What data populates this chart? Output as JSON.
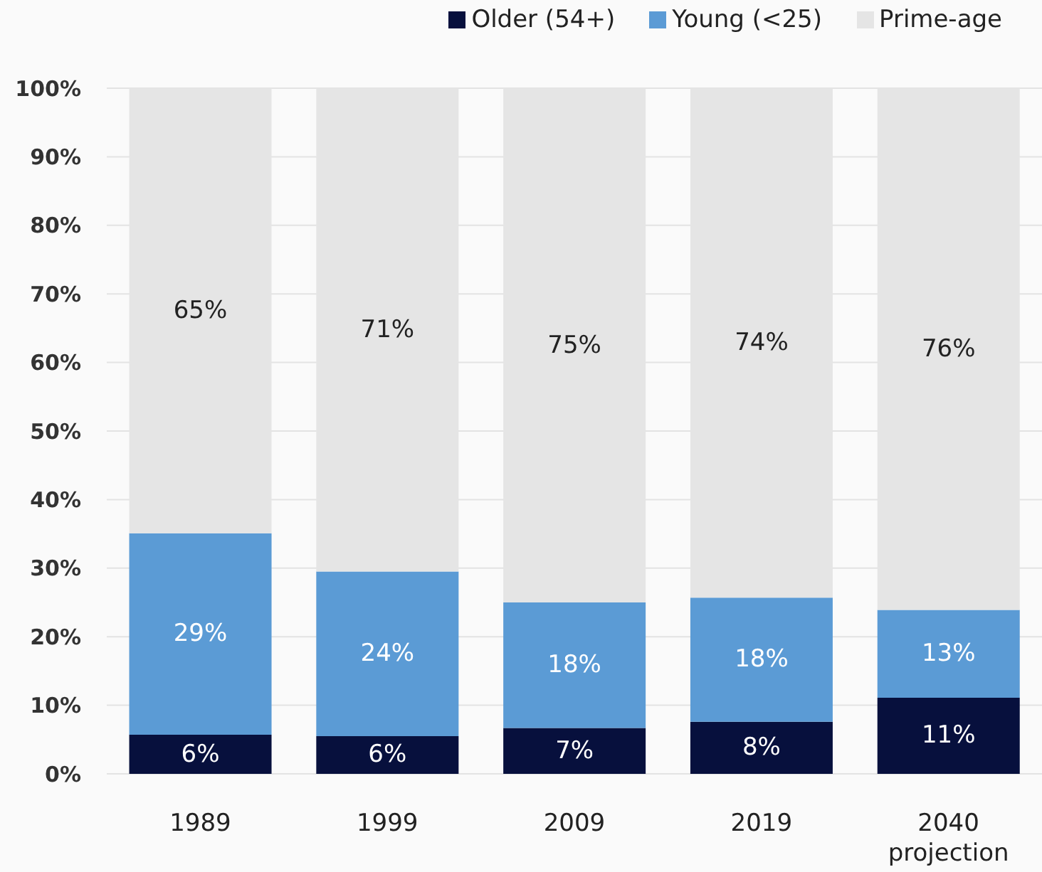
{
  "chart_data": {
    "type": "bar",
    "stacked": true,
    "categories": [
      "1989",
      "1999",
      "2009",
      "2019",
      "2040 projection"
    ],
    "series": [
      {
        "name": "Older (54+)",
        "color": "#07103d",
        "values": [
          5.7,
          5.5,
          6.7,
          7.6,
          11.1
        ],
        "value_labels": [
          "6%",
          "6%",
          "7%",
          "8%",
          "11%"
        ]
      },
      {
        "name": "Young (<25)",
        "color": "#5b9bd5",
        "values": [
          29.4,
          24.0,
          18.3,
          18.1,
          12.8
        ],
        "value_labels": [
          "29%",
          "24%",
          "18%",
          "18%",
          "13%"
        ]
      },
      {
        "name": "Prime-age",
        "color": "#e5e5e5",
        "values": [
          64.9,
          70.5,
          75.0,
          74.3,
          76.1
        ],
        "value_labels": [
          "65%",
          "71%",
          "75%",
          "74%",
          "76%"
        ]
      }
    ],
    "ylim": [
      0,
      100
    ],
    "yticks": [
      {
        "value": 0,
        "label": "0%"
      },
      {
        "value": 10,
        "label": "10%"
      },
      {
        "value": 20,
        "label": "20%"
      },
      {
        "value": 30,
        "label": "30%"
      },
      {
        "value": 40,
        "label": "40%"
      },
      {
        "value": 50,
        "label": "50%"
      },
      {
        "value": 60,
        "label": "60%"
      },
      {
        "value": 70,
        "label": "70%"
      },
      {
        "value": 80,
        "label": "80%"
      },
      {
        "value": 90,
        "label": "90%"
      },
      {
        "value": 100,
        "label": "100%"
      }
    ],
    "grid": "y",
    "legend": "top right"
  }
}
